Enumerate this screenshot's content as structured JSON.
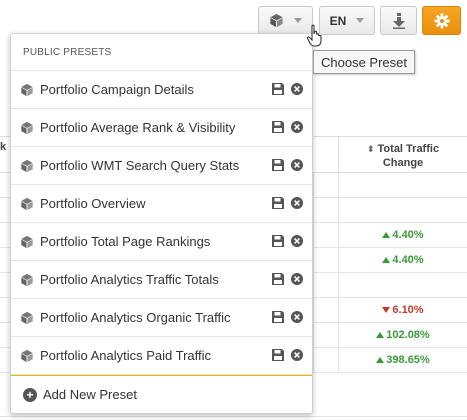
{
  "toolbar": {
    "preset_icon": "cube-icon",
    "language": "EN",
    "export_icon": "download-icon",
    "settings_icon": "gear-icon",
    "settings_color": "#f0a01e"
  },
  "tooltip": "Choose Preset",
  "dropdown": {
    "header": "PUBLIC PRESETS",
    "items": [
      {
        "label": "Portfolio Campaign Details"
      },
      {
        "label": "Portfolio Average Rank & Visibility"
      },
      {
        "label": "Portfolio WMT Search Query Stats"
      },
      {
        "label": "Portfolio Overview"
      },
      {
        "label": "Portfolio Total Page Rankings"
      },
      {
        "label": "Portfolio Analytics Traffic Totals"
      },
      {
        "label": "Portfolio Analytics Organic Traffic"
      },
      {
        "label": "Portfolio Analytics Paid Traffic"
      }
    ],
    "add_label": "Add New Preset"
  },
  "table": {
    "left_header_fragment": "k",
    "column_header_line1": "Total Traffic",
    "column_header_line2": "Change",
    "rows": [
      {
        "value": "",
        "dir": ""
      },
      {
        "value": "",
        "dir": ""
      },
      {
        "value": "4.40%",
        "dir": "up"
      },
      {
        "value": "4.40%",
        "dir": "up"
      },
      {
        "value": "",
        "dir": ""
      },
      {
        "value": "6.10%",
        "dir": "down"
      },
      {
        "value": "102.08%",
        "dir": "up"
      },
      {
        "value": "398.65%",
        "dir": "up"
      }
    ]
  }
}
